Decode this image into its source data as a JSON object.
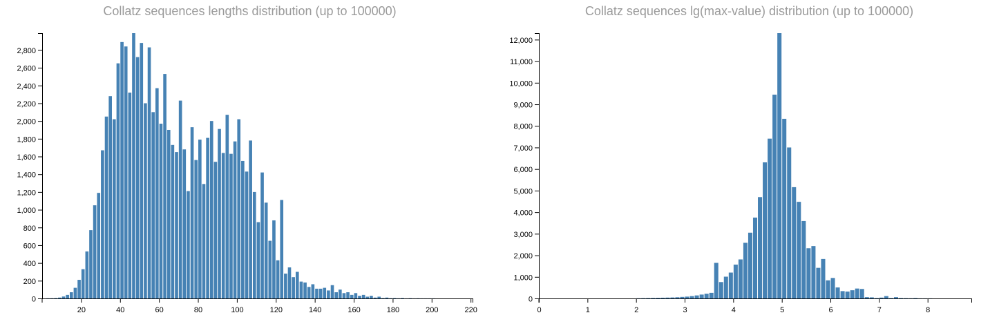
{
  "chart_data": [
    {
      "type": "bar",
      "title": "Collatz sequences lengths distribution (up to 100000)",
      "xlabel": "",
      "ylabel": "",
      "xlim": [
        0,
        221
      ],
      "ylim": [
        0,
        2990
      ],
      "bin_width": 2,
      "bar_color": "#4682b4",
      "grid": false,
      "legend": "none",
      "x_ticks": [
        20,
        40,
        60,
        80,
        100,
        120,
        140,
        160,
        180,
        200,
        220
      ],
      "y_ticks": [
        0,
        200,
        400,
        600,
        800,
        1000,
        1200,
        1400,
        1600,
        1800,
        2000,
        2200,
        2400,
        2600,
        2800
      ],
      "bin_starts": [
        2,
        4,
        6,
        8,
        10,
        12,
        14,
        16,
        18,
        20,
        22,
        24,
        26,
        28,
        30,
        32,
        34,
        36,
        38,
        40,
        42,
        44,
        46,
        48,
        50,
        52,
        54,
        56,
        58,
        60,
        62,
        64,
        66,
        68,
        70,
        72,
        74,
        76,
        78,
        80,
        82,
        84,
        86,
        88,
        90,
        92,
        94,
        96,
        98,
        100,
        102,
        104,
        106,
        108,
        110,
        112,
        114,
        116,
        118,
        120,
        122,
        124,
        126,
        128,
        130,
        132,
        134,
        136,
        138,
        140,
        142,
        144,
        146,
        148,
        150,
        152,
        154,
        156,
        158,
        160,
        162,
        164,
        166,
        168,
        170,
        172,
        174,
        176,
        178,
        180,
        182,
        184,
        186,
        188,
        190,
        192,
        194,
        196,
        198,
        200,
        202,
        204,
        206,
        208,
        210,
        212,
        214,
        216,
        218
      ],
      "values": [
        2,
        3,
        5,
        10,
        22,
        40,
        70,
        120,
        210,
        330,
        530,
        770,
        1050,
        1190,
        1670,
        2050,
        2280,
        2020,
        2650,
        2890,
        2840,
        2320,
        2990,
        2720,
        2880,
        2200,
        2830,
        2100,
        2370,
        1970,
        2530,
        1900,
        1730,
        1650,
        2230,
        1680,
        1210,
        1930,
        1560,
        1790,
        1290,
        1810,
        2000,
        1540,
        1910,
        1640,
        2070,
        1630,
        1770,
        2020,
        1550,
        1430,
        1780,
        1200,
        860,
        1420,
        1080,
        650,
        880,
        430,
        1110,
        280,
        350,
        240,
        300,
        190,
        180,
        130,
        160,
        110,
        110,
        120,
        90,
        150,
        70,
        100,
        60,
        70,
        40,
        60,
        30,
        40,
        20,
        30,
        10,
        20,
        5,
        10,
        3,
        5,
        2,
        5,
        1,
        3,
        1,
        2,
        1,
        1,
        1,
        1,
        0,
        0,
        0,
        0,
        0,
        0,
        0,
        0,
        0
      ]
    },
    {
      "type": "bar",
      "title": "Collatz sequences lg(max-value) distribution (up to 100000)",
      "xlabel": "",
      "ylabel": "",
      "xlim": [
        0,
        8.9
      ],
      "ylim": [
        0,
        12300
      ],
      "bin_width": 0.1,
      "bar_color": "#4682b4",
      "grid": false,
      "legend": "none",
      "x_ticks": [
        0,
        1,
        2,
        3,
        4,
        5,
        6,
        7,
        8
      ],
      "y_ticks": [
        0,
        1000,
        2000,
        3000,
        4000,
        5000,
        6000,
        7000,
        8000,
        9000,
        10000,
        11000,
        12000
      ],
      "bin_starts": [
        2.0,
        2.1,
        2.2,
        2.3,
        2.4,
        2.5,
        2.6,
        2.7,
        2.8,
        2.9,
        3.0,
        3.1,
        3.2,
        3.3,
        3.4,
        3.5,
        3.6,
        3.7,
        3.8,
        3.9,
        4.0,
        4.1,
        4.2,
        4.3,
        4.4,
        4.5,
        4.6,
        4.7,
        4.8,
        4.9,
        5.0,
        5.1,
        5.2,
        5.3,
        5.4,
        5.5,
        5.6,
        5.7,
        5.8,
        5.9,
        6.0,
        6.1,
        6.2,
        6.3,
        6.4,
        6.5,
        6.6,
        6.7,
        6.8,
        6.9,
        7.0,
        7.1,
        7.2,
        7.3,
        7.4,
        7.5,
        7.6,
        7.7,
        7.8,
        7.9,
        8.0
      ],
      "values": [
        10,
        15,
        20,
        25,
        30,
        35,
        40,
        45,
        55,
        70,
        85,
        110,
        140,
        180,
        220,
        260,
        1650,
        760,
        1010,
        1200,
        1570,
        1810,
        2580,
        3050,
        3750,
        4700,
        6310,
        7410,
        9450,
        12300,
        8330,
        7000,
        5160,
        4480,
        3590,
        2330,
        2430,
        1420,
        1830,
        840,
        950,
        510,
        340,
        320,
        380,
        460,
        440,
        60,
        50,
        20,
        40,
        110,
        20,
        60,
        20,
        15,
        10,
        20,
        5,
        5,
        5
      ]
    }
  ]
}
